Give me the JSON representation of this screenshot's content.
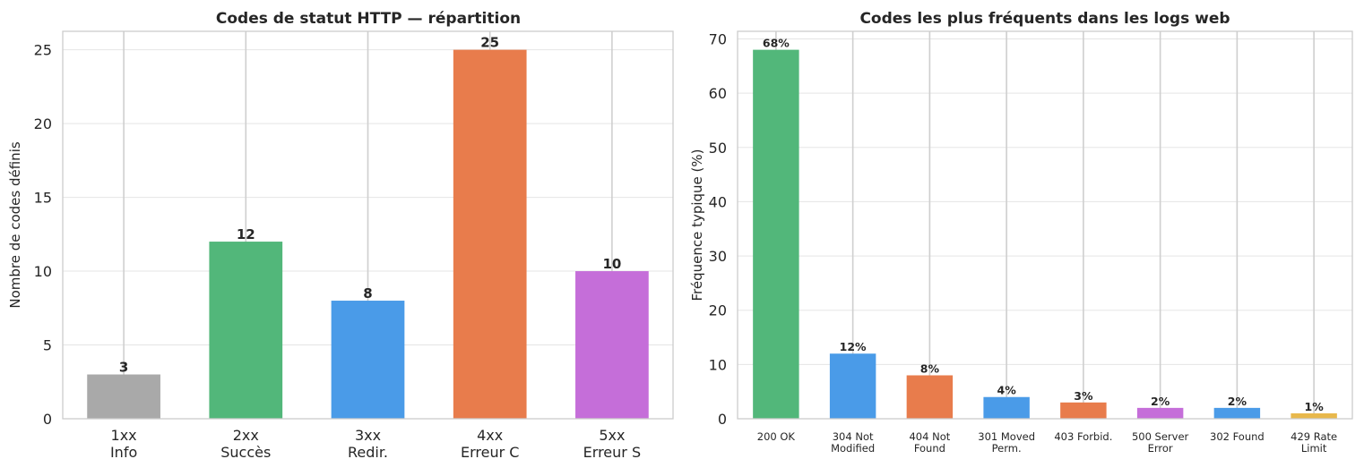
{
  "chart_data": [
    {
      "type": "bar",
      "title": "Codes de statut HTTP — répartition",
      "xlabel": "",
      "ylabel": "Nombre de codes définis",
      "categories": [
        "1xx\nInfo",
        "2xx\nSuccès",
        "3xx\nRedir.",
        "4xx\nErreur C",
        "5xx\nErreur S"
      ],
      "values": [
        3,
        12,
        8,
        25,
        10
      ],
      "value_labels": [
        "3",
        "12",
        "8",
        "25",
        "10"
      ],
      "colors": [
        "#a9a9a9",
        "#52b77a",
        "#4a9be8",
        "#e87c4c",
        "#c56ed9"
      ],
      "ylim": [
        0,
        26.25
      ],
      "yticks": [
        0,
        5,
        10,
        15,
        20,
        25
      ],
      "grid": true,
      "legend": "none"
    },
    {
      "type": "bar",
      "title": "Codes les plus fréquents dans les logs web",
      "xlabel": "",
      "ylabel": "Fréquence typique (%)",
      "categories": [
        "200 OK",
        "304 Not\nModified",
        "404 Not\nFound",
        "301 Moved\nPerm.",
        "403 Forbid.",
        "500 Server\nError",
        "302 Found",
        "429 Rate\nLimit"
      ],
      "values": [
        68,
        12,
        8,
        4,
        3,
        2,
        2,
        1
      ],
      "value_labels": [
        "68%",
        "12%",
        "8%",
        "4%",
        "3%",
        "2%",
        "2%",
        "1%"
      ],
      "colors": [
        "#52b77a",
        "#4a9be8",
        "#e87c4c",
        "#4a9be8",
        "#e87c4c",
        "#c56ed9",
        "#4a9be8",
        "#e8b84c"
      ],
      "ylim": [
        0,
        71.4
      ],
      "yticks": [
        0,
        10,
        20,
        30,
        40,
        50,
        60,
        70
      ],
      "grid": true,
      "legend": "none"
    }
  ]
}
